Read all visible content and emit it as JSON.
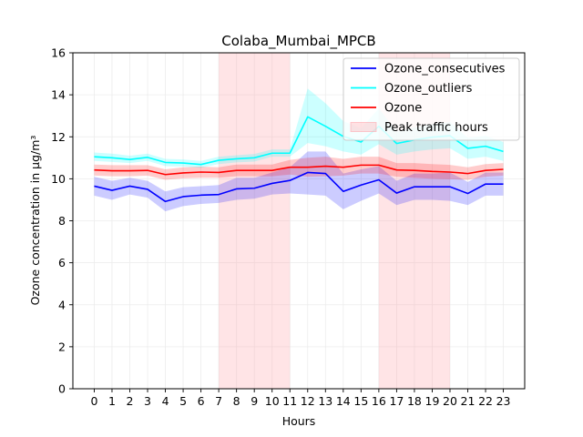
{
  "chart_data": {
    "type": "line",
    "title": "Colaba_Mumbai_MPCB",
    "xlabel": "Hours",
    "ylabel": "Ozone concentration in µg/m³",
    "x": [
      0,
      1,
      2,
      3,
      4,
      5,
      6,
      7,
      8,
      9,
      10,
      11,
      12,
      13,
      14,
      15,
      16,
      17,
      18,
      19,
      20,
      21,
      22,
      23
    ],
    "xlim": [
      -1.2,
      24.2
    ],
    "ylim": [
      0,
      16
    ],
    "yticks": [
      0,
      2,
      4,
      6,
      8,
      10,
      12,
      14,
      16
    ],
    "grid": true,
    "shaded_regions": [
      {
        "name": "Peak traffic hours",
        "x0": 7,
        "x1": 11,
        "color": "#ff9aa2"
      },
      {
        "name": "Peak traffic hours",
        "x0": 16,
        "x1": 20,
        "color": "#ff9aa2"
      }
    ],
    "series": [
      {
        "name": "Ozone_consecutives",
        "color": "#0000ff",
        "values": [
          9.65,
          9.45,
          9.65,
          9.5,
          8.92,
          9.15,
          9.22,
          9.25,
          9.52,
          9.55,
          9.78,
          9.92,
          10.3,
          10.25,
          9.4,
          9.7,
          9.95,
          9.32,
          9.62,
          9.62,
          9.62,
          9.3,
          9.75,
          9.75
        ],
        "lower": [
          9.2,
          9.0,
          9.25,
          9.1,
          8.45,
          8.7,
          8.8,
          8.85,
          9.0,
          9.05,
          9.25,
          9.3,
          9.25,
          9.2,
          8.55,
          8.95,
          9.3,
          8.75,
          9.0,
          9.0,
          8.95,
          8.75,
          9.2,
          9.2
        ],
        "upper": [
          10.1,
          9.9,
          10.05,
          9.9,
          9.4,
          9.6,
          9.65,
          9.7,
          10.05,
          10.05,
          10.3,
          10.55,
          11.3,
          11.3,
          10.25,
          10.45,
          10.6,
          9.9,
          10.25,
          10.25,
          10.3,
          9.85,
          10.3,
          10.3
        ]
      },
      {
        "name": "Ozone_outliers",
        "color": "#00ffff",
        "values": [
          11.05,
          11.0,
          10.92,
          11.02,
          10.78,
          10.75,
          10.68,
          10.88,
          10.95,
          11.0,
          11.22,
          11.22,
          12.95,
          12.5,
          12.02,
          11.75,
          12.5,
          11.68,
          11.85,
          11.98,
          12.05,
          11.45,
          11.55,
          11.3
        ],
        "lower": [
          10.85,
          10.8,
          10.75,
          10.85,
          10.6,
          10.58,
          10.52,
          10.7,
          10.78,
          10.82,
          11.05,
          11.05,
          11.7,
          11.55,
          11.3,
          11.15,
          11.65,
          11.15,
          11.3,
          11.4,
          11.45,
          10.95,
          11.05,
          10.85
        ],
        "upper": [
          11.25,
          11.2,
          11.1,
          11.2,
          10.95,
          10.92,
          10.85,
          11.05,
          11.12,
          11.18,
          11.4,
          11.4,
          14.3,
          13.6,
          12.75,
          12.4,
          13.35,
          12.25,
          12.45,
          12.6,
          12.7,
          11.95,
          12.05,
          11.75
        ]
      },
      {
        "name": "Ozone",
        "color": "#ff0000",
        "values": [
          10.42,
          10.38,
          10.38,
          10.4,
          10.2,
          10.28,
          10.32,
          10.3,
          10.4,
          10.4,
          10.4,
          10.55,
          10.55,
          10.6,
          10.55,
          10.65,
          10.65,
          10.42,
          10.4,
          10.35,
          10.32,
          10.25,
          10.4,
          10.45
        ],
        "lower": [
          10.15,
          10.12,
          10.12,
          10.15,
          9.95,
          10.02,
          10.05,
          10.05,
          10.12,
          10.12,
          10.12,
          10.2,
          10.1,
          10.12,
          10.15,
          10.25,
          10.25,
          10.1,
          10.05,
          10.0,
          9.98,
          9.95,
          10.1,
          10.15
        ],
        "upper": [
          10.68,
          10.65,
          10.65,
          10.65,
          10.45,
          10.55,
          10.58,
          10.55,
          10.68,
          10.68,
          10.68,
          10.9,
          11.0,
          11.05,
          10.95,
          11.05,
          11.05,
          10.75,
          10.75,
          10.7,
          10.66,
          10.55,
          10.7,
          10.75
        ]
      }
    ],
    "legend": {
      "position": "top-right",
      "entries": [
        "Ozone_consecutives",
        "Ozone_outliers",
        "Ozone",
        "Peak traffic hours"
      ]
    }
  }
}
